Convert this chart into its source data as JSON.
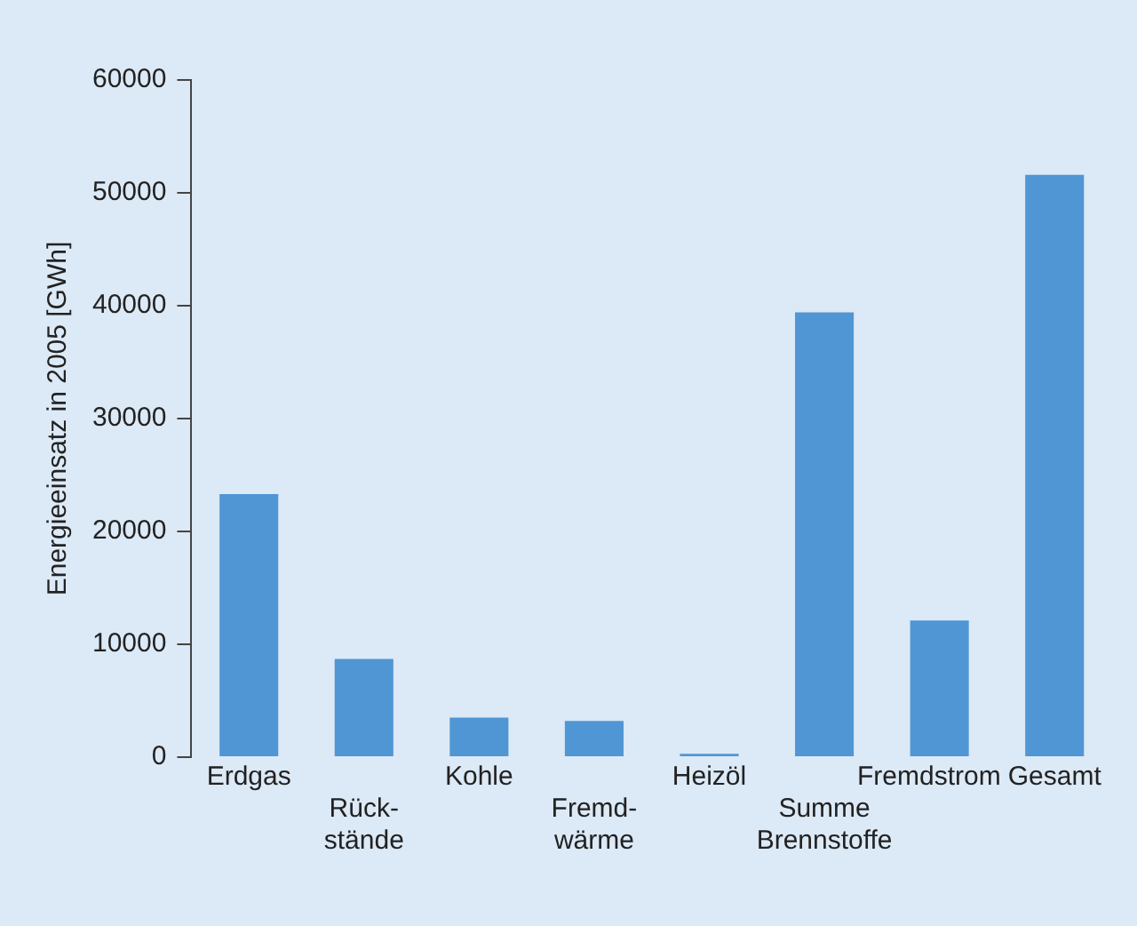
{
  "chart_data": {
    "type": "bar",
    "ylabel": "Energieeinsatz in 2005 [GWh]",
    "categories": [
      "Erdgas",
      "Rück-\nstände",
      "Kohle",
      "Fremd-\nwärme",
      "Heizöl",
      "Summe\nBrennstoffe",
      "Fremdstrom",
      "Gesamt"
    ],
    "values": [
      23300,
      8700,
      3500,
      3200,
      300,
      39400,
      12100,
      51600
    ],
    "color": "#5096d4",
    "ylim": [
      0,
      60000
    ],
    "yticks": [
      0,
      10000,
      20000,
      30000,
      40000,
      50000,
      60000
    ],
    "grid": false,
    "legend": false
  }
}
